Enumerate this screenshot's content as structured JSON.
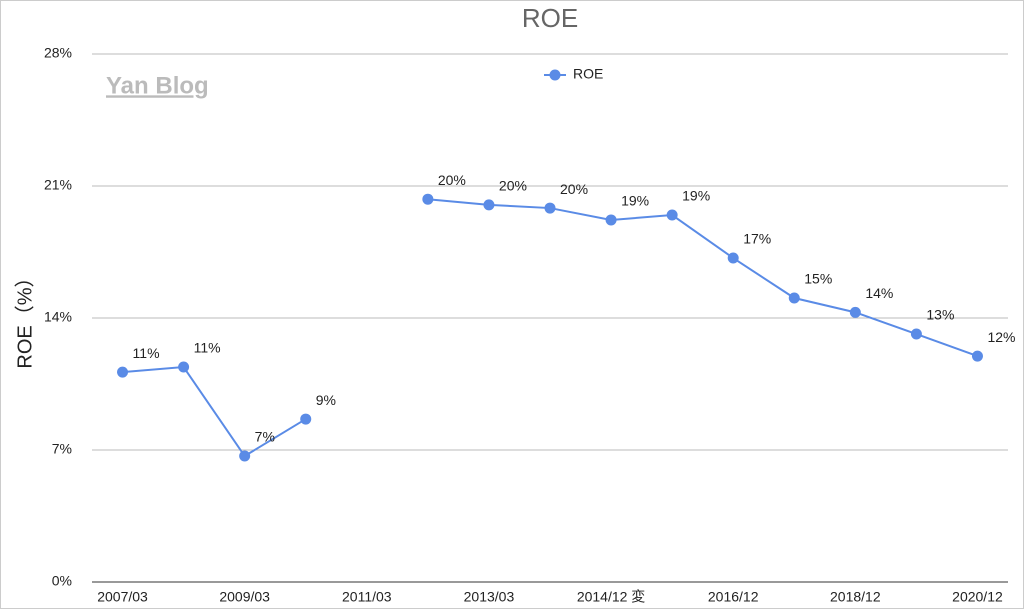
{
  "chart_data": {
    "type": "line",
    "title": "ROE",
    "y_label": "ROE（%）",
    "annotation": "Yan Blog",
    "categories": [
      "2007/03",
      null,
      "2009/03",
      null,
      "2011/03",
      null,
      "2013/03",
      null,
      "2014/12 変",
      null,
      "2016/12",
      null,
      "2018/12",
      null,
      "2020/12"
    ],
    "series": [
      {
        "name": "ROE",
        "color": "#5a8be6",
        "values": [
          11.13,
          11.4,
          6.68,
          8.64,
          null,
          20.3,
          20.0,
          19.83,
          19.2,
          19.46,
          17.18,
          15.06,
          14.3,
          13.15,
          11.98
        ],
        "value_labels": [
          "11%",
          "11%",
          "7%",
          "9%",
          null,
          "20%",
          "20%",
          "20%",
          "19%",
          "19%",
          "17%",
          "15%",
          "14%",
          "13%",
          "12%"
        ]
      }
    ],
    "ylim": [
      0,
      28
    ],
    "yticks": [
      {
        "value": 0,
        "label": "0%"
      },
      {
        "value": 7,
        "label": "7%"
      },
      {
        "value": 14,
        "label": "14%"
      },
      {
        "value": 21,
        "label": "21%"
      },
      {
        "value": 28,
        "label": "28%"
      }
    ],
    "grid": true,
    "legend": "top"
  }
}
